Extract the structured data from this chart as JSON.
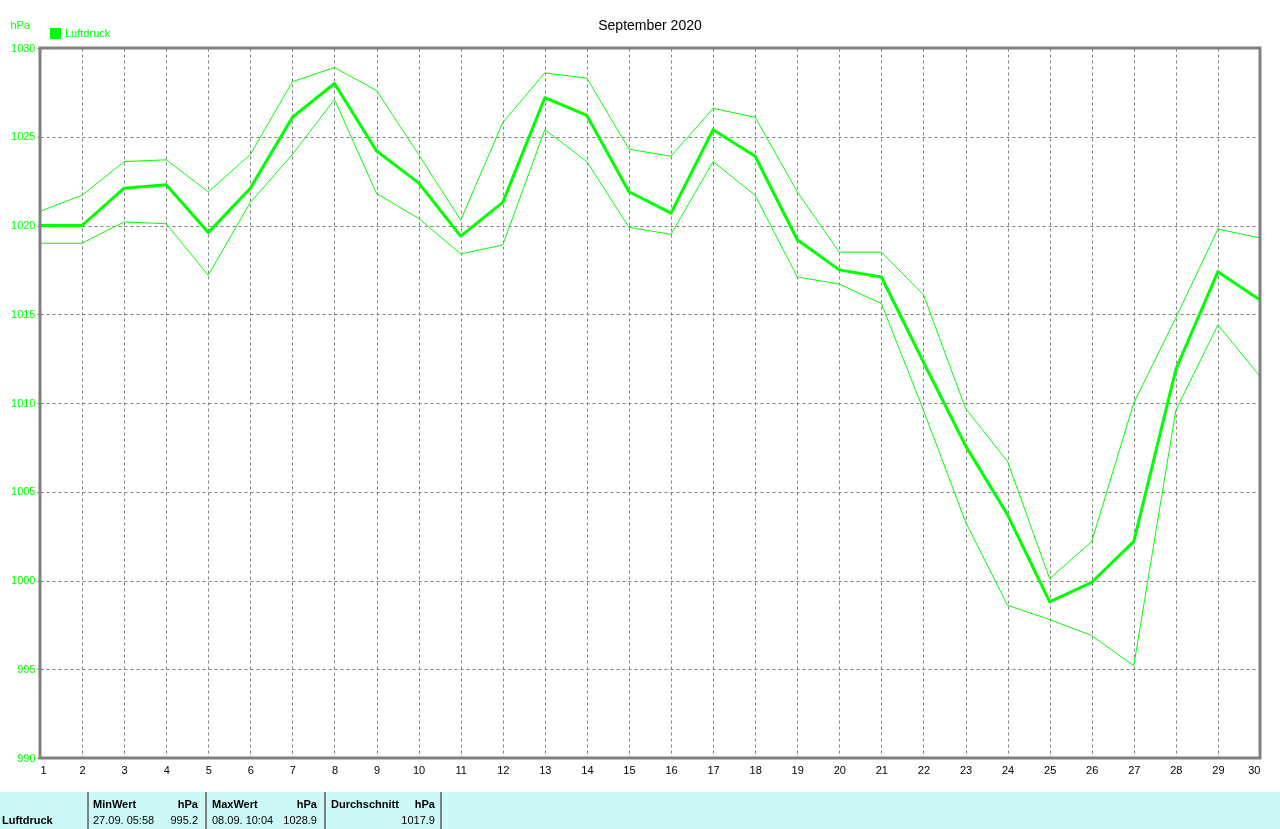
{
  "chart_data": {
    "type": "line",
    "title": "September 2020",
    "ylabel": "hPa",
    "x": [
      1,
      2,
      3,
      4,
      5,
      6,
      7,
      8,
      9,
      10,
      11,
      12,
      13,
      14,
      15,
      16,
      17,
      18,
      19,
      20,
      21,
      22,
      23,
      24,
      25,
      26,
      27,
      28,
      29,
      30
    ],
    "series": [
      {
        "name": "Luftdruck",
        "color": "#00ff00",
        "values": [
          1020.0,
          1020.0,
          1022.1,
          1022.3,
          1019.6,
          1022.1,
          1026.1,
          1028.0,
          1024.2,
          1022.4,
          1019.4,
          1021.3,
          1027.2,
          1026.2,
          1021.9,
          1020.7,
          1025.4,
          1023.9,
          1019.2,
          1017.5,
          1017.1,
          1012.3,
          1007.6,
          1003.7,
          998.8,
          999.9,
          1002.2,
          1011.9,
          1017.4,
          1015.8
        ],
        "x": [
          1,
          2,
          3,
          4,
          5,
          6,
          7,
          8,
          9,
          10,
          11,
          12,
          13,
          14,
          15,
          16,
          17,
          18,
          19,
          20,
          21,
          22,
          23,
          24,
          25,
          26,
          27,
          28,
          29,
          30
        ]
      },
      {
        "color": "#00ff00",
        "values": [
          1020.8,
          1021.7,
          1023.6,
          1023.7,
          1021.9,
          1024.0,
          1028.1,
          1028.9,
          1027.6,
          1024.0,
          1020.3,
          1025.8,
          1028.6,
          1028.3,
          1024.3,
          1023.9,
          1026.6,
          1026.1,
          1021.9,
          1018.5,
          1018.5,
          1016.1,
          1009.7,
          1006.7,
          1000.1,
          1002.2,
          1010.0,
          1014.8,
          1019.8,
          1019.3
        ]
      },
      {
        "color": "#00ff00",
        "values": [
          1019.0,
          1019.0,
          1020.2,
          1020.1,
          1017.2,
          1021.3,
          1024.0,
          1027.1,
          1021.8,
          1020.4,
          1018.4,
          1018.9,
          1025.4,
          1023.6,
          1019.9,
          1019.5,
          1023.6,
          1021.7,
          1017.1,
          1016.7,
          1015.6,
          1009.6,
          1003.3,
          998.6,
          997.8,
          996.9,
          995.2,
          1009.6,
          1014.4,
          1011.5
        ]
      }
    ],
    "xlim": [
      1,
      30
    ],
    "xticks": [
      1,
      2,
      3,
      4,
      5,
      6,
      7,
      8,
      9,
      10,
      11,
      12,
      13,
      14,
      15,
      16,
      17,
      18,
      19,
      20,
      21,
      22,
      23,
      24,
      25,
      26,
      27,
      28,
      29,
      30
    ],
    "ylim": [
      990,
      1030
    ],
    "yticks": [
      990,
      995,
      1000,
      1005,
      1010,
      1015,
      1020,
      1025,
      1030
    ],
    "grid": true,
    "legend": "top left",
    "marker": "none",
    "line_style": "solid",
    "annotations": [
      "Luftdruck",
      "MinWert",
      "hPa",
      "27.09.  05:58",
      "995.2",
      "MaxWert",
      "hPa",
      "08.09.  10:04",
      "1028.9",
      "Durchschnitt",
      "hPa",
      "1017.9"
    ]
  }
}
